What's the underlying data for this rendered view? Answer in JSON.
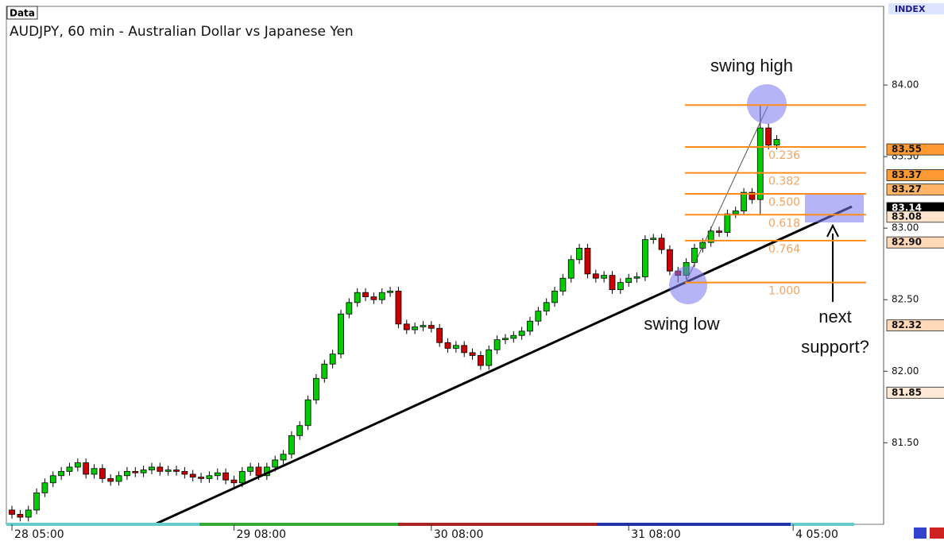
{
  "chart_data": {
    "type": "candlestick",
    "panel_label": "Data",
    "title": "AUDJPY, 60 min - Australian Dollar vs Japanese Yen",
    "corner_label": "INDEX",
    "annotations": [
      "swing high",
      "swing low",
      "next",
      "support?"
    ],
    "up_color": "#00cc00",
    "down_color": "#cc0000",
    "open": [
      81.03,
      81.0,
      80.98,
      81.03,
      81.15,
      81.22,
      81.27,
      81.3,
      81.33,
      81.36,
      81.28,
      81.32,
      81.25,
      81.23,
      81.27,
      81.3,
      81.29,
      81.31,
      81.33,
      81.3,
      81.31,
      81.3,
      81.28,
      81.26,
      81.25,
      81.27,
      81.29,
      81.24,
      81.22,
      81.3,
      81.33,
      81.27,
      81.33,
      81.38,
      81.42,
      81.55,
      81.62,
      81.8,
      81.95,
      82.05,
      82.12,
      82.4,
      82.48,
      82.55,
      82.52,
      82.5,
      82.55,
      82.56,
      82.33,
      82.29,
      82.31,
      82.32,
      82.3,
      82.2,
      82.16,
      82.18,
      82.13,
      82.11,
      82.04,
      82.15,
      82.22,
      82.23,
      82.25,
      82.28,
      82.35,
      82.42,
      82.48,
      82.56,
      82.65,
      82.78,
      82.86,
      82.68,
      82.65,
      82.67,
      82.57,
      82.62,
      82.65,
      82.66,
      82.92,
      82.93,
      82.85,
      82.7,
      82.67,
      82.76,
      82.86,
      82.9,
      82.98,
      82.97,
      83.1,
      83.12,
      83.25,
      83.2,
      83.7,
      83.58
    ],
    "high": [
      81.06,
      81.03,
      81.06,
      81.18,
      81.25,
      81.3,
      81.33,
      81.36,
      81.39,
      81.39,
      81.35,
      81.35,
      81.28,
      81.3,
      81.33,
      81.33,
      81.34,
      81.36,
      81.36,
      81.34,
      81.34,
      81.33,
      81.31,
      81.29,
      81.3,
      81.32,
      81.32,
      81.27,
      81.33,
      81.36,
      81.36,
      81.36,
      81.41,
      81.45,
      81.58,
      81.65,
      81.83,
      81.98,
      82.08,
      82.15,
      82.43,
      82.51,
      82.58,
      82.58,
      82.55,
      82.58,
      82.59,
      82.59,
      82.36,
      82.34,
      82.35,
      82.35,
      82.33,
      82.23,
      82.21,
      82.21,
      82.16,
      82.14,
      82.18,
      82.25,
      82.26,
      82.28,
      82.31,
      82.38,
      82.45,
      82.51,
      82.59,
      82.68,
      82.81,
      82.89,
      82.89,
      82.71,
      82.7,
      82.7,
      82.65,
      82.68,
      82.69,
      82.95,
      82.96,
      82.96,
      82.88,
      82.73,
      82.79,
      82.89,
      82.93,
      83.01,
      83.01,
      83.13,
      83.15,
      83.28,
      83.28,
      83.86,
      83.73,
      83.65
    ],
    "low": [
      80.97,
      80.95,
      80.95,
      81.0,
      81.12,
      81.19,
      81.24,
      81.27,
      81.3,
      81.25,
      81.25,
      81.22,
      81.2,
      81.2,
      81.24,
      81.26,
      81.26,
      81.28,
      81.27,
      81.27,
      81.27,
      81.25,
      81.23,
      81.22,
      81.22,
      81.24,
      81.21,
      81.19,
      81.19,
      81.27,
      81.24,
      81.24,
      81.3,
      81.35,
      81.39,
      81.52,
      81.59,
      81.77,
      81.92,
      82.02,
      82.09,
      82.37,
      82.45,
      82.49,
      82.47,
      82.47,
      82.52,
      82.3,
      82.26,
      82.26,
      82.28,
      82.27,
      82.17,
      82.13,
      82.13,
      82.1,
      82.08,
      82.01,
      82.01,
      82.12,
      82.19,
      82.2,
      82.22,
      82.25,
      82.32,
      82.39,
      82.45,
      82.53,
      82.62,
      82.75,
      82.65,
      82.62,
      82.62,
      82.54,
      82.54,
      82.59,
      82.62,
      82.63,
      82.89,
      82.82,
      82.67,
      82.62,
      82.64,
      82.73,
      82.83,
      82.87,
      82.94,
      82.94,
      83.07,
      83.09,
      83.17,
      83.09,
      83.55,
      83.55
    ],
    "close": [
      81.0,
      80.98,
      81.03,
      81.15,
      81.22,
      81.27,
      81.3,
      81.33,
      81.36,
      81.28,
      81.32,
      81.25,
      81.23,
      81.27,
      81.3,
      81.29,
      81.31,
      81.33,
      81.3,
      81.31,
      81.3,
      81.28,
      81.26,
      81.25,
      81.27,
      81.29,
      81.24,
      81.22,
      81.3,
      81.33,
      81.27,
      81.33,
      81.38,
      81.42,
      81.55,
      81.62,
      81.8,
      81.95,
      82.05,
      82.12,
      82.4,
      82.48,
      82.55,
      82.52,
      82.5,
      82.55,
      82.56,
      82.33,
      82.29,
      82.31,
      82.32,
      82.3,
      82.2,
      82.16,
      82.18,
      82.13,
      82.11,
      82.04,
      82.15,
      82.22,
      82.23,
      82.25,
      82.28,
      82.35,
      82.42,
      82.48,
      82.56,
      82.65,
      82.78,
      82.86,
      82.68,
      82.65,
      82.67,
      82.57,
      82.62,
      82.65,
      82.66,
      82.92,
      82.93,
      82.85,
      82.7,
      82.67,
      82.76,
      82.86,
      82.9,
      82.98,
      82.97,
      83.1,
      83.12,
      83.25,
      83.2,
      83.7,
      83.58,
      83.62
    ],
    "xlim": [
      -0.68,
      106
    ],
    "xticks": [
      {
        "value": 0,
        "label": "28 05:00"
      },
      {
        "value": 27,
        "label": "29 08:00"
      },
      {
        "value": 51,
        "label": "30 08:00"
      },
      {
        "value": 75,
        "label": "31 08:00"
      },
      {
        "value": 95,
        "label": "4 05:00"
      }
    ],
    "ylim": [
      80.93,
      84.55
    ],
    "yticks": [
      {
        "value": 81.5,
        "label": "81.50"
      },
      {
        "value": 82,
        "label": "82.00"
      },
      {
        "value": 82.5,
        "label": "82.50"
      },
      {
        "value": 83,
        "label": "83.00"
      },
      {
        "value": 83.5,
        "label": "83.50"
      },
      {
        "value": 84,
        "label": "84.00"
      }
    ],
    "fibonacci": {
      "high": 83.86,
      "low": 82.62,
      "color": "#ff8c1a",
      "label_color": "#f4a460",
      "levels": [
        0.236,
        0.382,
        {
          "value": 0.5,
          "label": "0.500"
        },
        0.618,
        0.764,
        {
          "value": 1,
          "label": "1.000"
        }
      ]
    },
    "price_tags": [
      83.55,
      83.37,
      83.27,
      83.14,
      83.08,
      {
        "value": 82.9,
        "label": "82.90"
      },
      82.32,
      81.85
    ],
    "price_tag_colors": [
      "#ff9933",
      "#ff9933",
      "#ffb366",
      "#000000",
      "#ffe4cc",
      "#ffd9b8",
      "#ffd9b8",
      "#ffe9d6"
    ]
  }
}
